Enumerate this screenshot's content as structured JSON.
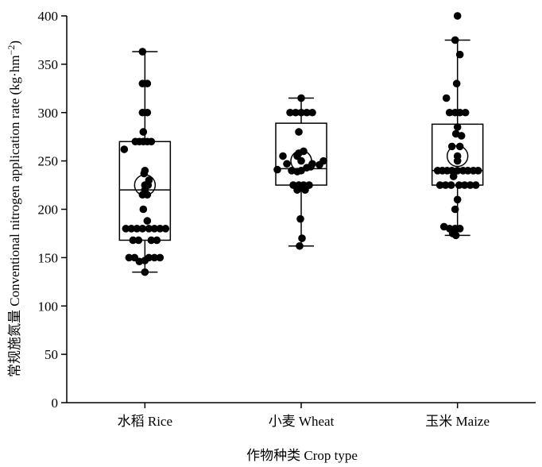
{
  "chart_data": {
    "type": "boxplot",
    "xlabel": "作物种类 Crop type",
    "ylabel": "常规施氮量 Conventional nitrogen application rate (kg·hm",
    "ylabel_sup": "−2",
    "ylabel_close": ")",
    "ylim": [
      0,
      400
    ],
    "yticks": [
      "0",
      "50",
      "100",
      "150",
      "200",
      "250",
      "300",
      "350",
      "400"
    ],
    "categories": [
      "水稻 Rice",
      "小麦 Wheat",
      "玉米 Maize"
    ],
    "grid": false,
    "boxes": [
      {
        "name": "水稻 Rice",
        "min": 135,
        "q1": 168,
        "median": 220,
        "q3": 270,
        "max": 363,
        "mean": 225
      },
      {
        "name": "小麦 Wheat",
        "min": 162,
        "q1": 225,
        "median": 242,
        "q3": 289,
        "max": 315,
        "mean": 250
      },
      {
        "name": "玉米 Maize",
        "min": 173,
        "q1": 225,
        "median": 240,
        "q3": 288,
        "max": 375,
        "mean": 255
      }
    ],
    "points": [
      [
        {
          "dx": -3,
          "y": 363
        },
        {
          "dx": -3,
          "y": 330
        },
        {
          "dx": 3,
          "y": 330
        },
        {
          "dx": -3,
          "y": 300
        },
        {
          "dx": 3,
          "y": 300
        },
        {
          "dx": -2,
          "y": 280
        },
        {
          "dx": -12,
          "y": 270
        },
        {
          "dx": -7,
          "y": 270
        },
        {
          "dx": -2,
          "y": 270
        },
        {
          "dx": 3,
          "y": 270
        },
        {
          "dx": 8,
          "y": 270
        },
        {
          "dx": -26,
          "y": 262
        },
        {
          "dx": 0,
          "y": 240
        },
        {
          "dx": -1,
          "y": 237
        },
        {
          "dx": 5,
          "y": 230
        },
        {
          "dx": 4,
          "y": 225
        },
        {
          "dx": 0,
          "y": 220
        },
        {
          "dx": -3,
          "y": 215
        },
        {
          "dx": 3,
          "y": 215
        },
        {
          "dx": -2,
          "y": 200
        },
        {
          "dx": -24,
          "y": 180
        },
        {
          "dx": -17,
          "y": 180
        },
        {
          "dx": -10,
          "y": 180
        },
        {
          "dx": -3,
          "y": 180
        },
        {
          "dx": 5,
          "y": 180
        },
        {
          "dx": 12,
          "y": 180
        },
        {
          "dx": 19,
          "y": 180
        },
        {
          "dx": 26,
          "y": 180
        },
        {
          "dx": 3,
          "y": 188
        },
        {
          "dx": -15,
          "y": 168
        },
        {
          "dx": -8,
          "y": 168
        },
        {
          "dx": 8,
          "y": 168
        },
        {
          "dx": 15,
          "y": 168
        },
        {
          "dx": -20,
          "y": 150
        },
        {
          "dx": -13,
          "y": 150
        },
        {
          "dx": 5,
          "y": 150
        },
        {
          "dx": 12,
          "y": 150
        },
        {
          "dx": 19,
          "y": 150
        },
        {
          "dx": -7,
          "y": 146
        },
        {
          "dx": 0,
          "y": 147
        },
        {
          "dx": 0,
          "y": 135
        }
      ],
      [
        {
          "dx": 0,
          "y": 315
        },
        {
          "dx": -14,
          "y": 300
        },
        {
          "dx": -7,
          "y": 300
        },
        {
          "dx": 0,
          "y": 300
        },
        {
          "dx": 7,
          "y": 300
        },
        {
          "dx": 14,
          "y": 300
        },
        {
          "dx": -3,
          "y": 280
        },
        {
          "dx": 3,
          "y": 260
        },
        {
          "dx": -3,
          "y": 258
        },
        {
          "dx": -23,
          "y": 255
        },
        {
          "dx": -5,
          "y": 255
        },
        {
          "dx": 28,
          "y": 250
        },
        {
          "dx": -18,
          "y": 247
        },
        {
          "dx": 14,
          "y": 247
        },
        {
          "dx": 23,
          "y": 246
        },
        {
          "dx": -30,
          "y": 241
        },
        {
          "dx": -12,
          "y": 240
        },
        {
          "dx": 0,
          "y": 240
        },
        {
          "dx": 7,
          "y": 243
        },
        {
          "dx": 12,
          "y": 244
        },
        {
          "dx": -5,
          "y": 239
        },
        {
          "dx": -10,
          "y": 225
        },
        {
          "dx": -3,
          "y": 225
        },
        {
          "dx": 3,
          "y": 225
        },
        {
          "dx": 10,
          "y": 225
        },
        {
          "dx": -5,
          "y": 220
        },
        {
          "dx": 5,
          "y": 220
        },
        {
          "dx": -1,
          "y": 190
        },
        {
          "dx": 1,
          "y": 170
        },
        {
          "dx": -2,
          "y": 162
        }
      ],
      [
        {
          "dx": 0,
          "y": 400
        },
        {
          "dx": -3,
          "y": 375
        },
        {
          "dx": 3,
          "y": 360
        },
        {
          "dx": -1,
          "y": 330
        },
        {
          "dx": -14,
          "y": 315
        },
        {
          "dx": -10,
          "y": 300
        },
        {
          "dx": -3,
          "y": 300
        },
        {
          "dx": 3,
          "y": 300
        },
        {
          "dx": 10,
          "y": 300
        },
        {
          "dx": 0,
          "y": 285
        },
        {
          "dx": -2,
          "y": 278
        },
        {
          "dx": 5,
          "y": 276
        },
        {
          "dx": -7,
          "y": 265
        },
        {
          "dx": 3,
          "y": 265
        },
        {
          "dx": 0,
          "y": 250
        },
        {
          "dx": -25,
          "y": 240
        },
        {
          "dx": -19,
          "y": 240
        },
        {
          "dx": -13,
          "y": 240
        },
        {
          "dx": -7,
          "y": 240
        },
        {
          "dx": 0,
          "y": 240
        },
        {
          "dx": 7,
          "y": 240
        },
        {
          "dx": 13,
          "y": 240
        },
        {
          "dx": 20,
          "y": 240
        },
        {
          "dx": 26,
          "y": 240
        },
        {
          "dx": -5,
          "y": 234
        },
        {
          "dx": -22,
          "y": 225
        },
        {
          "dx": -15,
          "y": 225
        },
        {
          "dx": -8,
          "y": 225
        },
        {
          "dx": 2,
          "y": 225
        },
        {
          "dx": 9,
          "y": 225
        },
        {
          "dx": 16,
          "y": 225
        },
        {
          "dx": 23,
          "y": 225
        },
        {
          "dx": 0,
          "y": 210
        },
        {
          "dx": -3,
          "y": 200
        },
        {
          "dx": -17,
          "y": 182
        },
        {
          "dx": -10,
          "y": 180
        },
        {
          "dx": -3,
          "y": 180
        },
        {
          "dx": 3,
          "y": 180
        },
        {
          "dx": -6,
          "y": 175
        },
        {
          "dx": -2,
          "y": 173
        }
      ]
    ]
  }
}
